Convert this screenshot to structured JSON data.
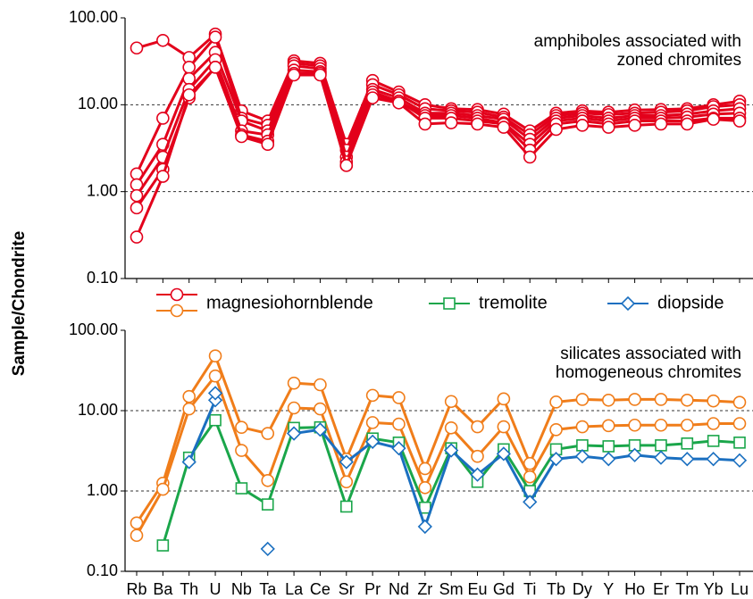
{
  "ylabel": "Sample/Chondrite",
  "legend": [
    {
      "label": "magnesiohornblende",
      "colors": [
        "#e3001b",
        "#f07d1a"
      ],
      "marker": "circle"
    },
    {
      "label": "tremolite",
      "colors": [
        "#1aa64a"
      ],
      "marker": "square"
    },
    {
      "label": "diopside",
      "colors": [
        "#1a6fc0"
      ],
      "marker": "diamond"
    }
  ],
  "chart_data": [
    {
      "type": "line",
      "log_y": true,
      "grid": true,
      "annotation": [
        "amphiboles associated with",
        "zoned chromites"
      ],
      "ylim": [
        0.1,
        100
      ],
      "yticks": [
        {
          "value": 0.1,
          "label": "0.10"
        },
        {
          "value": 1,
          "label": "1.00"
        },
        {
          "value": 10,
          "label": "10.00"
        },
        {
          "value": 100,
          "label": "100.00"
        }
      ],
      "series": [
        {
          "color": "#e3001b",
          "marker": "circle",
          "values": [
            45,
            55,
            35,
            65,
            8.5,
            6.5,
            32,
            30,
            3.5,
            19,
            14,
            10,
            9,
            8.8,
            7.8,
            5,
            8,
            8.5,
            8.2,
            8.7,
            8.8,
            9,
            10,
            11
          ]
        },
        {
          "color": "#e3001b",
          "marker": "circle",
          "values": [
            1.6,
            7,
            27,
            60,
            7,
            5.8,
            30,
            28,
            3,
            17,
            13,
            9,
            8.5,
            8.2,
            7.2,
            4.5,
            7.5,
            8,
            7.7,
            8,
            8.2,
            8.5,
            9.5,
            10
          ]
        },
        {
          "color": "#e3001b",
          "marker": "circle",
          "values": [
            1.2,
            3.5,
            20,
            40,
            6.5,
            5,
            28,
            26,
            2.5,
            15,
            12,
            8,
            8,
            7.5,
            6.8,
            4,
            7,
            7.5,
            7,
            7.5,
            7.5,
            7.8,
            8.5,
            9
          ]
        },
        {
          "color": "#e3001b",
          "marker": "circle",
          "values": [
            0.9,
            2.5,
            15,
            33,
            5,
            4.5,
            25,
            24,
            2.2,
            14,
            11,
            7.5,
            7.5,
            7,
            6.2,
            3.5,
            6.5,
            7,
            6.5,
            7,
            7,
            7.2,
            7.8,
            8
          ]
        },
        {
          "color": "#e3001b",
          "marker": "circle",
          "values": [
            0.65,
            1.8,
            12,
            27,
            4.5,
            3.8,
            23,
            23,
            2,
            13,
            11,
            7,
            7,
            6.5,
            6,
            3,
            6,
            6.5,
            6,
            6.5,
            6.5,
            6.5,
            7,
            7
          ]
        },
        {
          "color": "#e3001b",
          "marker": "circle",
          "values": [
            0.3,
            1.5,
            13,
            27,
            4.3,
            3.5,
            22,
            22,
            2,
            12,
            10.5,
            6,
            6.2,
            6,
            5.5,
            2.5,
            5.2,
            5.8,
            5.5,
            5.8,
            6,
            6,
            6.8,
            6.5
          ]
        }
      ]
    },
    {
      "type": "line",
      "log_y": true,
      "grid": true,
      "annotation": [
        "silicates associated with",
        "homogeneous chromites"
      ],
      "categories": [
        "Rb",
        "Ba",
        "Th",
        "U",
        "Nb",
        "Ta",
        "La",
        "Ce",
        "Sr",
        "Pr",
        "Nd",
        "Zr",
        "Sm",
        "Eu",
        "Gd",
        "Ti",
        "Tb",
        "Dy",
        "Y",
        "Ho",
        "Er",
        "Tm",
        "Yb",
        "Lu"
      ],
      "ylim": [
        0.1,
        100
      ],
      "yticks": [
        {
          "value": 0.1,
          "label": "0.10"
        },
        {
          "value": 1,
          "label": "1.00"
        },
        {
          "value": 10,
          "label": "10.00"
        },
        {
          "value": 100,
          "label": "100.00"
        }
      ],
      "series": [
        {
          "color": "#f07d1a",
          "marker": "circle",
          "values": [
            0.4,
            1.25,
            15,
            48,
            6.2,
            5.2,
            22,
            21,
            2.5,
            15.5,
            14.5,
            1.9,
            13,
            6.3,
            14,
            2.2,
            12.8,
            13.8,
            13.5,
            13.8,
            13.8,
            13.5,
            13.2,
            12.7
          ]
        },
        {
          "color": "#f07d1a",
          "marker": "circle",
          "values": [
            0.28,
            1.05,
            10.5,
            27,
            3.2,
            1.35,
            10.8,
            10.5,
            1.3,
            7.1,
            6.8,
            1.1,
            6.1,
            2.7,
            6.3,
            1.5,
            5.8,
            6.3,
            6.5,
            6.6,
            6.6,
            6.6,
            6.9,
            6.9
          ]
        },
        {
          "color": "#1aa64a",
          "marker": "square",
          "values": [
            null,
            0.21,
            2.6,
            7.6,
            1.08,
            0.68,
            6.1,
            6.2,
            0.64,
            4.5,
            4.0,
            0.62,
            3.4,
            1.3,
            3.3,
            1.0,
            3.3,
            3.7,
            3.6,
            3.7,
            3.7,
            3.9,
            4.2,
            4.0
          ]
        },
        {
          "color": "#1a6fc0",
          "marker": "diamond",
          "values": [
            null,
            null,
            2.3,
            13.5,
            null,
            null,
            5.2,
            5.8,
            2.3,
            4.1,
            3.4,
            0.36,
            3.2,
            1.6,
            2.9,
            0.73,
            2.5,
            2.7,
            2.5,
            2.8,
            2.6,
            2.5,
            2.5,
            2.4
          ]
        },
        {
          "color": "#1a6fc0",
          "marker": "diamond",
          "values": [
            null,
            null,
            null,
            16.5,
            null,
            0.19,
            null,
            null,
            null,
            null,
            null,
            null,
            null,
            null,
            null,
            null,
            null,
            null,
            null,
            null,
            null,
            null,
            null,
            null
          ]
        }
      ]
    }
  ]
}
